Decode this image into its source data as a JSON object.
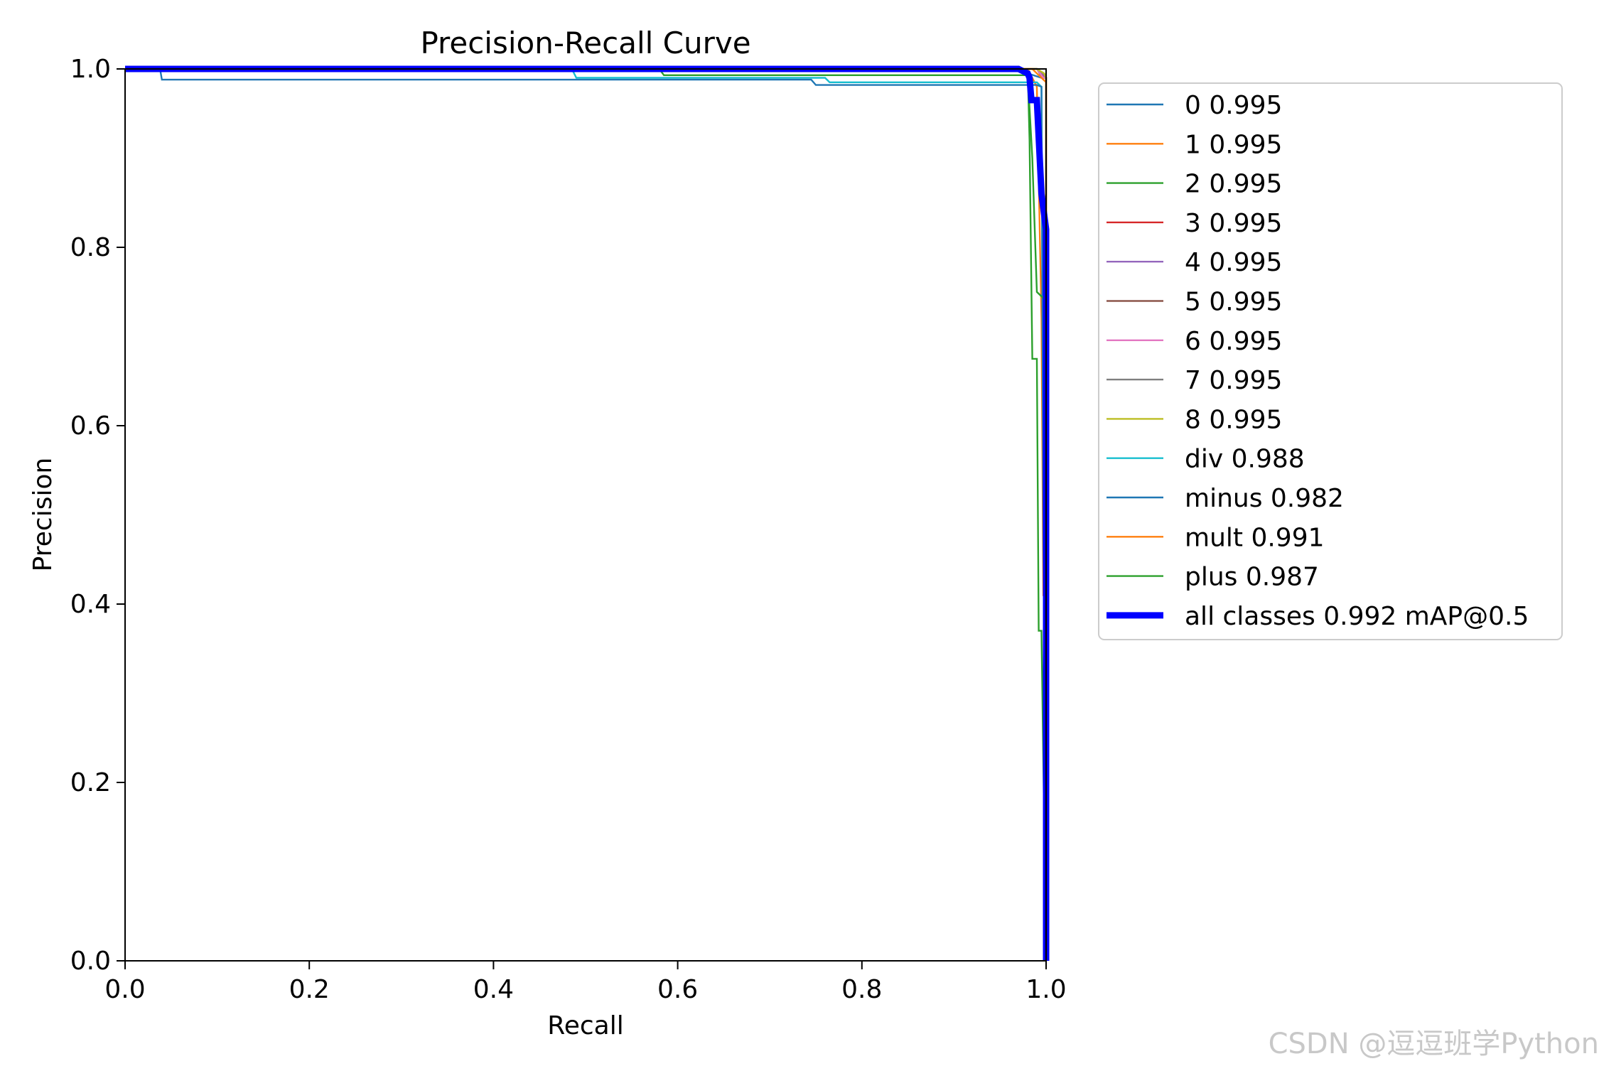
{
  "chart_data": {
    "type": "line",
    "title": "Precision-Recall Curve",
    "xlabel": "Recall",
    "ylabel": "Precision",
    "xlim": [
      0.0,
      1.0
    ],
    "ylim": [
      0.0,
      1.0
    ],
    "xticks": [
      "0.0",
      "0.2",
      "0.4",
      "0.6",
      "0.8",
      "1.0"
    ],
    "yticks": [
      "0.0",
      "0.2",
      "0.4",
      "0.6",
      "0.8",
      "1.0"
    ],
    "grid": false,
    "legend_position": "outside-upper-right",
    "series": [
      {
        "name": "0 0.995",
        "color": "#1f77b4",
        "points": [
          [
            0,
            1
          ],
          [
            0.97,
            1
          ],
          [
            0.98,
            0.995
          ],
          [
            0.995,
            0.99
          ],
          [
            1,
            0.99
          ],
          [
            1,
            0
          ]
        ]
      },
      {
        "name": "1 0.995",
        "color": "#ff7f0e",
        "points": [
          [
            0,
            1
          ],
          [
            0.98,
            1
          ],
          [
            0.99,
            0.98
          ],
          [
            0.995,
            0.72
          ],
          [
            0.997,
            0.41
          ],
          [
            1,
            0.41
          ],
          [
            1,
            0
          ]
        ]
      },
      {
        "name": "2 0.995",
        "color": "#2ca02c",
        "points": [
          [
            0,
            1
          ],
          [
            0.98,
            1
          ],
          [
            0.982,
            0.92
          ],
          [
            0.985,
            0.675
          ],
          [
            0.99,
            0.675
          ],
          [
            0.992,
            0.37
          ],
          [
            0.995,
            0.37
          ],
          [
            1,
            0
          ]
        ]
      },
      {
        "name": "3 0.995",
        "color": "#d62728",
        "points": [
          [
            0,
            1
          ],
          [
            0.99,
            1
          ],
          [
            0.995,
            0.995
          ],
          [
            1,
            0.99
          ],
          [
            1,
            0
          ]
        ]
      },
      {
        "name": "4 0.995",
        "color": "#9467bd",
        "points": [
          [
            0,
            1
          ],
          [
            0.99,
            1
          ],
          [
            0.996,
            0.995
          ],
          [
            1,
            0.99
          ],
          [
            1,
            0
          ]
        ]
      },
      {
        "name": "5 0.995",
        "color": "#8c564b",
        "points": [
          [
            0,
            1
          ],
          [
            0.99,
            1
          ],
          [
            0.996,
            0.99
          ],
          [
            1,
            0.99
          ],
          [
            1,
            0
          ]
        ]
      },
      {
        "name": "6 0.995",
        "color": "#e377c2",
        "points": [
          [
            0,
            1
          ],
          [
            0.99,
            1
          ],
          [
            0.997,
            0.99
          ],
          [
            1,
            0.99
          ],
          [
            1,
            0
          ]
        ]
      },
      {
        "name": "7 0.995",
        "color": "#7f7f7f",
        "points": [
          [
            0,
            1
          ],
          [
            0.99,
            1
          ],
          [
            0.997,
            0.995
          ],
          [
            1,
            0.99
          ],
          [
            1,
            0
          ]
        ]
      },
      {
        "name": "8 0.995",
        "color": "#bcbd22",
        "points": [
          [
            0,
            1
          ],
          [
            0.99,
            1
          ],
          [
            0.998,
            0.995
          ],
          [
            1,
            0.99
          ],
          [
            1,
            0
          ]
        ]
      },
      {
        "name": "div 0.988",
        "color": "#17becf",
        "points": [
          [
            0,
            1
          ],
          [
            0.485,
            1
          ],
          [
            0.49,
            0.99
          ],
          [
            0.76,
            0.99
          ],
          [
            0.765,
            0.985
          ],
          [
            0.99,
            0.985
          ],
          [
            0.995,
            0.98
          ],
          [
            0.998,
            0.3
          ],
          [
            1,
            0.05
          ],
          [
            1,
            0
          ]
        ]
      },
      {
        "name": "minus 0.982",
        "color": "#1f77b4",
        "points": [
          [
            0,
            1
          ],
          [
            0.038,
            1
          ],
          [
            0.04,
            0.988
          ],
          [
            0.745,
            0.988
          ],
          [
            0.75,
            0.982
          ],
          [
            0.99,
            0.982
          ],
          [
            0.995,
            0.98
          ],
          [
            0.997,
            0.5
          ],
          [
            1,
            0.1
          ],
          [
            1,
            0
          ]
        ]
      },
      {
        "name": "mult 0.991",
        "color": "#ff7f0e",
        "points": [
          [
            0,
            1
          ],
          [
            0.985,
            1
          ],
          [
            0.99,
            0.995
          ],
          [
            0.995,
            0.99
          ],
          [
            1,
            0.985
          ],
          [
            1,
            0
          ]
        ]
      },
      {
        "name": "plus 0.987",
        "color": "#2ca02c",
        "points": [
          [
            0,
            1
          ],
          [
            0.58,
            1
          ],
          [
            0.585,
            0.993
          ],
          [
            0.98,
            0.993
          ],
          [
            0.985,
            0.9
          ],
          [
            0.99,
            0.75
          ],
          [
            1,
            0.74
          ],
          [
            1,
            0
          ]
        ]
      },
      {
        "name": "all classes 0.992 mAP@0.5",
        "color": "#0000ff",
        "points": [
          [
            0,
            1
          ],
          [
            0.97,
            1
          ],
          [
            0.98,
            0.995
          ],
          [
            0.982,
            0.99
          ],
          [
            0.984,
            0.965
          ],
          [
            0.99,
            0.965
          ],
          [
            0.995,
            0.86
          ],
          [
            1,
            0.82
          ],
          [
            1,
            0
          ]
        ]
      }
    ]
  },
  "watermark": "CSDN @逗逗班学Python"
}
